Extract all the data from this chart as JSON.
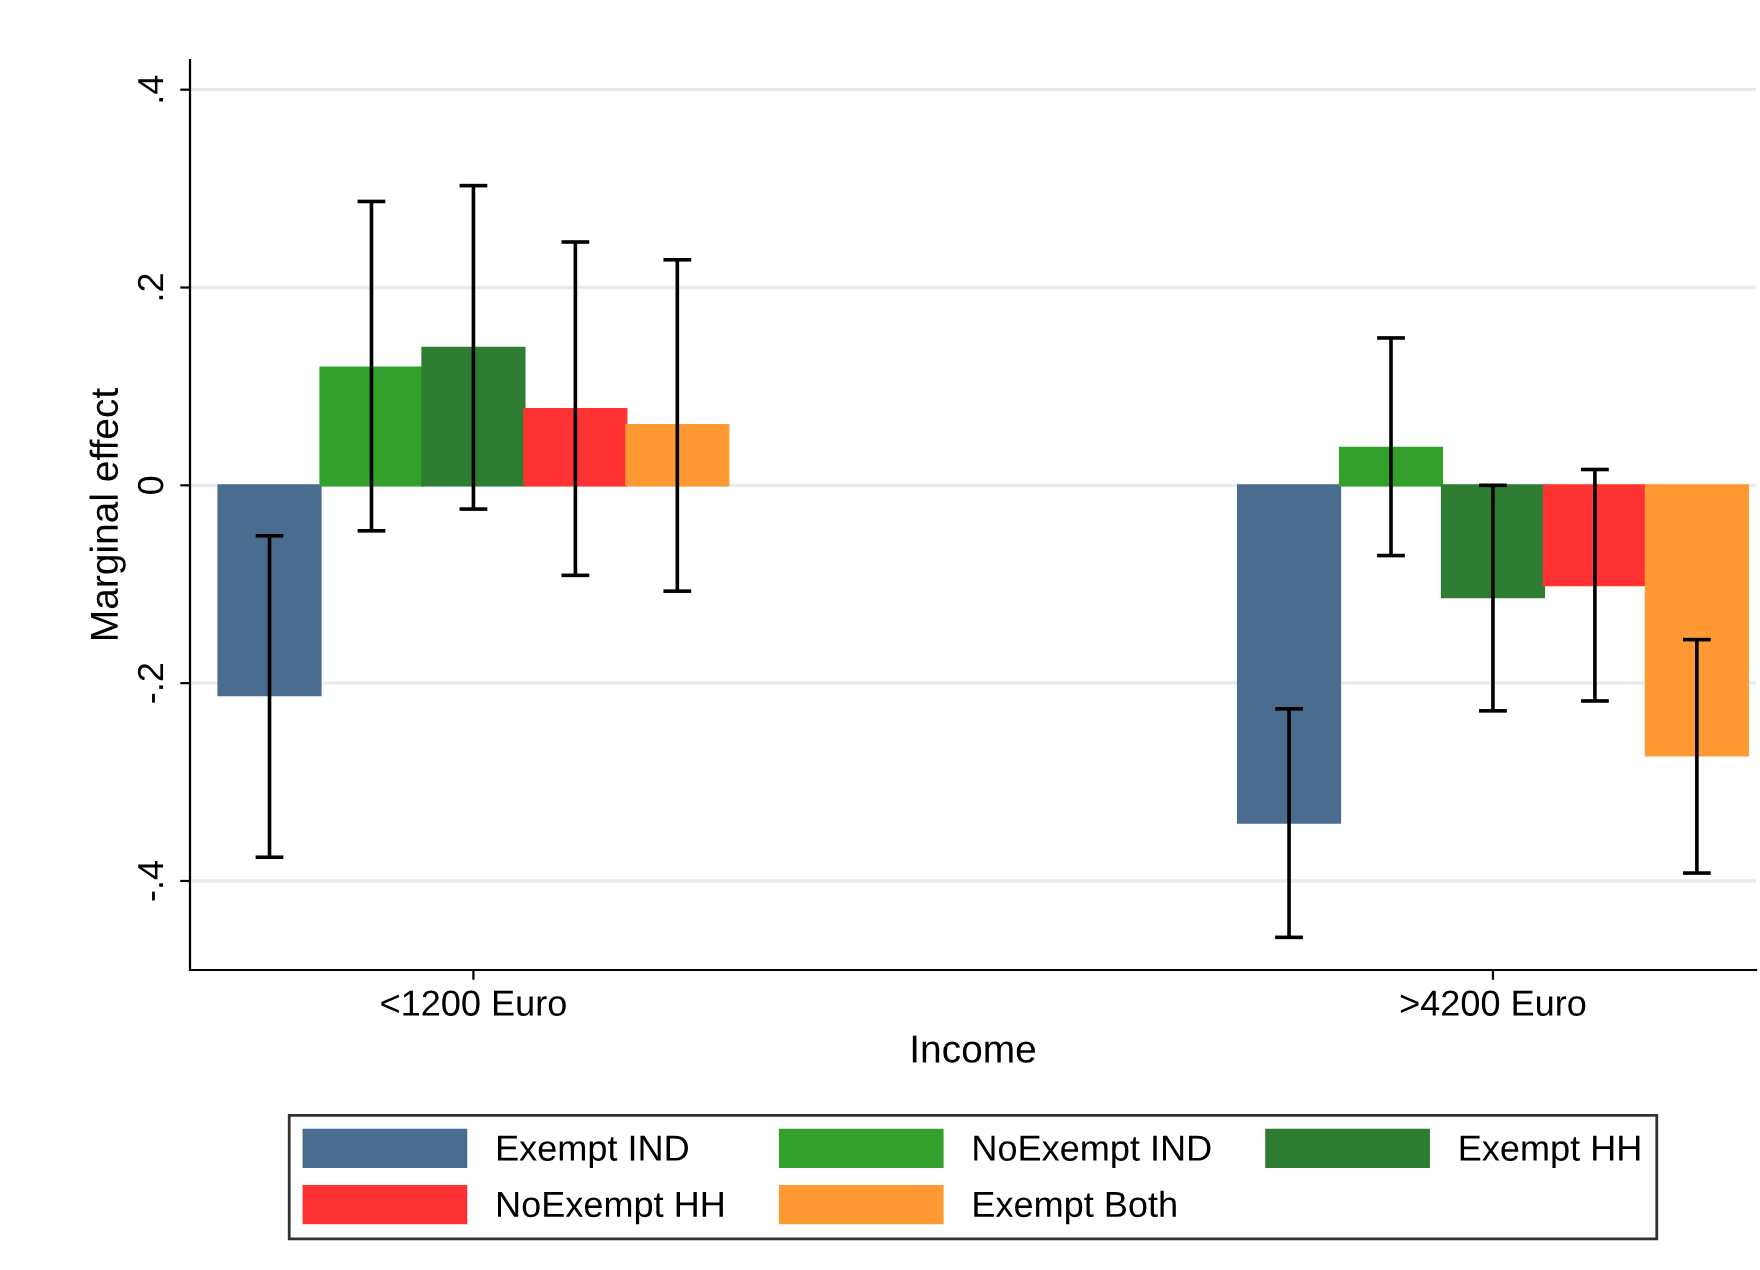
{
  "chart_data": {
    "type": "bar",
    "xlabel": "Income",
    "ylabel": "Marginal effect",
    "categories": [
      "<1200 Euro",
      ">4200 Euro"
    ],
    "series": [
      {
        "name": "Exempt IND",
        "color": "#4a6d8f",
        "values": [
          -0.212,
          -0.341
        ],
        "errors": [
          [
            -0.376,
            -0.051
          ],
          [
            -0.457,
            -0.226
          ]
        ]
      },
      {
        "name": "NoExempt IND",
        "color": "#33a02c",
        "values": [
          0.119,
          0.038
        ],
        "errors": [
          [
            -0.046,
            0.287
          ],
          [
            -0.071,
            0.149
          ]
        ]
      },
      {
        "name": "Exempt HH",
        "color": "#2e7d32",
        "values": [
          0.139,
          -0.113
        ],
        "errors": [
          [
            -0.024,
            0.303
          ],
          [
            -0.228,
            0.0
          ]
        ]
      },
      {
        "name": "NoExempt HH",
        "color": "#ff3333",
        "values": [
          0.077,
          -0.101
        ],
        "errors": [
          [
            -0.091,
            0.246
          ],
          [
            -0.218,
            0.016
          ]
        ]
      },
      {
        "name": "Exempt Both",
        "color": "#ff9933",
        "values": [
          0.061,
          -0.273
        ],
        "errors": [
          [
            -0.107,
            0.228
          ],
          [
            -0.392,
            -0.156
          ]
        ]
      }
    ],
    "ylim": [
      -0.49,
      0.43
    ],
    "yticks": [
      {
        "value": -0.4,
        "label": "-.4"
      },
      {
        "value": -0.2,
        "label": "-.2"
      },
      {
        "value": 0,
        "label": "0"
      },
      {
        "value": 0.2,
        "label": ".2"
      },
      {
        "value": 0.4,
        "label": ".4"
      }
    ],
    "grid": "y",
    "legend": "bottom"
  }
}
